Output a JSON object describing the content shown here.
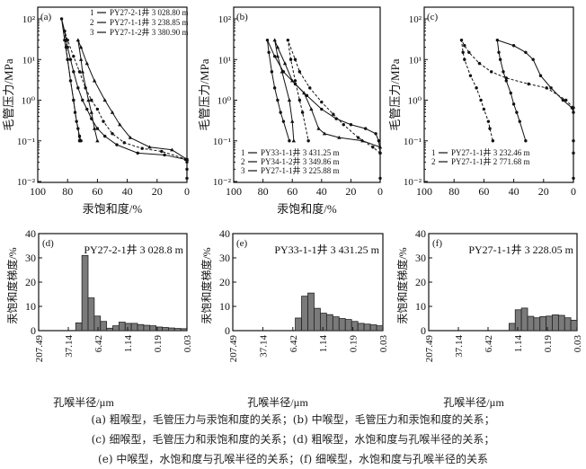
{
  "chart_data": [
    {
      "panel": "(a)",
      "type": "line",
      "ylog": true,
      "ylabel": "毛管压力/MPa",
      "xlabel": "汞饱和度/%",
      "xlim": [
        100,
        0
      ],
      "ylim": [
        0.01,
        100
      ],
      "xticks": [
        "100",
        "80",
        "60",
        "40",
        "20",
        "0"
      ],
      "yticks": [
        "10²",
        "10¹",
        "10⁰",
        "10⁻¹",
        "10⁻²"
      ],
      "legend_position": "top-right",
      "series": [
        {
          "name": "PY27-2-1井 3 028.80 m",
          "label": "1",
          "dash": false,
          "marker": "circle",
          "points": [
            [
              0,
              0.012
            ],
            [
              0,
              0.02
            ],
            [
              0,
              0.03
            ],
            [
              1,
              0.035
            ],
            [
              15,
              0.045
            ],
            [
              33,
              0.05
            ],
            [
              47,
              0.08
            ],
            [
              55,
              0.13
            ],
            [
              60,
              0.2
            ],
            [
              64,
              0.35
            ],
            [
              67,
              0.6
            ],
            [
              70,
              1
            ],
            [
              73,
              2
            ],
            [
              76,
              5
            ],
            [
              78,
              10
            ],
            [
              80,
              20
            ],
            [
              82,
              50
            ],
            [
              84,
              100
            ],
            [
              82,
              30
            ],
            [
              80,
              10
            ],
            [
              78,
              3
            ],
            [
              76,
              1
            ],
            [
              74,
              0.3
            ],
            [
              72,
              0.13
            ],
            [
              71,
              0.1
            ]
          ]
        },
        {
          "name": "PY27-1-1井 3 238.85 m",
          "label": "2",
          "dash": true,
          "marker": "circle",
          "points": [
            [
              0,
              0.035
            ],
            [
              17,
              0.055
            ],
            [
              30,
              0.065
            ],
            [
              42,
              0.09
            ],
            [
              50,
              0.15
            ],
            [
              56,
              0.3
            ],
            [
              60,
              0.6
            ],
            [
              64,
              1
            ],
            [
              68,
              2
            ],
            [
              72,
              5
            ],
            [
              76,
              12
            ],
            [
              80,
              30
            ],
            [
              82,
              50
            ],
            [
              81,
              20
            ],
            [
              80,
              10
            ],
            [
              78,
              3
            ],
            [
              76,
              1
            ],
            [
              75,
              0.5
            ],
            [
              73,
              0.2
            ],
            [
              72,
              0.1
            ]
          ]
        },
        {
          "name": "PY27-1-2井 3 380.90 m",
          "label": "3",
          "dash": false,
          "marker": "triangle",
          "points": [
            [
              0,
              0.035
            ],
            [
              10,
              0.06
            ],
            [
              25,
              0.07
            ],
            [
              38,
              0.12
            ],
            [
              45,
              0.25
            ],
            [
              50,
              0.5
            ],
            [
              55,
              1
            ],
            [
              62,
              3
            ],
            [
              67,
              8
            ],
            [
              71,
              20
            ],
            [
              73,
              30
            ],
            [
              71,
              10
            ],
            [
              70,
              5
            ],
            [
              66,
              1
            ],
            [
              64,
              0.5
            ],
            [
              62,
              0.2
            ],
            [
              60,
              0.1
            ]
          ]
        }
      ]
    },
    {
      "panel": "(b)",
      "type": "line",
      "ylog": true,
      "ylabel": "毛管压力/MPa",
      "xlabel": "汞饱和度/%",
      "xlim": [
        100,
        0
      ],
      "ylim": [
        0.01,
        100
      ],
      "xticks": [
        "100",
        "80",
        "60",
        "40",
        "20",
        "0"
      ],
      "yticks": [
        "10²",
        "10¹",
        "10⁰",
        "10⁻¹",
        "10⁻²"
      ],
      "legend_position": "bottom-left",
      "series": [
        {
          "name": "PY33-1-1井 3 431.25 m",
          "label": "1",
          "dash": false,
          "marker": "circle",
          "points": [
            [
              0,
              0.012
            ],
            [
              0,
              0.05
            ],
            [
              1,
              0.1
            ],
            [
              3,
              0.15
            ],
            [
              10,
              0.2
            ],
            [
              20,
              0.25
            ],
            [
              30,
              0.35
            ],
            [
              40,
              0.6
            ],
            [
              50,
              1.3
            ],
            [
              58,
              2.5
            ],
            [
              66,
              5
            ],
            [
              72,
              12
            ],
            [
              77,
              30
            ],
            [
              76,
              15
            ],
            [
              74,
              5
            ],
            [
              72,
              2
            ],
            [
              70,
              1
            ],
            [
              68,
              0.5
            ],
            [
              66,
              0.3
            ],
            [
              62,
              0.1
            ]
          ]
        },
        {
          "name": "PY34-1-2井 3 349.86 m",
          "label": "2",
          "dash": true,
          "marker": "circle",
          "points": [
            [
              0,
              0.05
            ],
            [
              5,
              0.07
            ],
            [
              15,
              0.12
            ],
            [
              25,
              0.25
            ],
            [
              32,
              0.45
            ],
            [
              40,
              0.9
            ],
            [
              48,
              2
            ],
            [
              55,
              5
            ],
            [
              58,
              10
            ],
            [
              63,
              30
            ],
            [
              61,
              10
            ],
            [
              58,
              3
            ],
            [
              55,
              1
            ],
            [
              53,
              0.5
            ],
            [
              49,
              0.1
            ]
          ]
        },
        {
          "name": "PY27-1-1井 3 225.88 m",
          "label": "3",
          "dash": false,
          "marker": "triangle",
          "points": [
            [
              0,
              0.07
            ],
            [
              12,
              0.1
            ],
            [
              28,
              0.12
            ],
            [
              38,
              0.15
            ],
            [
              42,
              0.2
            ],
            [
              47,
              0.6
            ],
            [
              52,
              1.5
            ],
            [
              60,
              3
            ],
            [
              65,
              8
            ],
            [
              70,
              20
            ],
            [
              72,
              30
            ],
            [
              70,
              12
            ],
            [
              67,
              5
            ],
            [
              62,
              1
            ],
            [
              60,
              0.3
            ],
            [
              59,
              0.1
            ]
          ]
        }
      ]
    },
    {
      "panel": "(c)",
      "type": "line",
      "ylog": true,
      "ylabel": "毛管压力/MPa",
      "xlabel": "",
      "xlim": [
        100,
        0
      ],
      "ylim": [
        0.01,
        100
      ],
      "xticks": [
        "100",
        "80",
        "60",
        "40",
        "20",
        "0"
      ],
      "yticks": [
        "10²",
        "10¹",
        "10⁰",
        "10⁻¹",
        "10⁻²"
      ],
      "legend_position": "bottom-left",
      "series": [
        {
          "name": "PY27-1-1井 3 232.46 m",
          "label": "1",
          "dash": false,
          "marker": "circle",
          "points": [
            [
              0,
              0.012
            ],
            [
              0,
              0.05
            ],
            [
              0,
              0.1
            ],
            [
              0,
              0.5
            ],
            [
              1,
              0.65
            ],
            [
              7,
              1
            ],
            [
              15,
              2
            ],
            [
              22,
              4
            ],
            [
              27,
              10
            ],
            [
              32,
              15
            ],
            [
              40,
              22
            ],
            [
              51,
              30
            ],
            [
              50,
              15
            ],
            [
              49,
              10
            ],
            [
              47,
              5
            ],
            [
              45,
              3
            ],
            [
              42,
              1.5
            ],
            [
              40,
              0.8
            ],
            [
              38,
              0.5
            ],
            [
              36,
              0.3
            ],
            [
              32,
              0.1
            ]
          ]
        },
        {
          "name": "PY27-1-1井 2 771.68 m",
          "label": "2",
          "dash": true,
          "marker": "circle",
          "points": [
            [
              0,
              0.65
            ],
            [
              5,
              1
            ],
            [
              18,
              2
            ],
            [
              30,
              2.5
            ],
            [
              45,
              3.5
            ],
            [
              55,
              5
            ],
            [
              63,
              8
            ],
            [
              70,
              15
            ],
            [
              73,
              22
            ],
            [
              75,
              30
            ],
            [
              74,
              15
            ],
            [
              73,
              10
            ],
            [
              69,
              4
            ],
            [
              65,
              2
            ],
            [
              62,
              1
            ],
            [
              60,
              0.6
            ],
            [
              57,
              0.3
            ],
            [
              56,
              0.2
            ],
            [
              54,
              0.1
            ]
          ]
        }
      ]
    },
    {
      "panel": "(d)",
      "type": "bar",
      "title": "PY27-2-1井 3 028.8 m",
      "ylabel": "汞饱和度梯度/%",
      "xlabel": "孔喉半径/µm",
      "ylim": [
        0,
        40
      ],
      "yticks": [
        "0",
        "10",
        "20",
        "30",
        "40"
      ],
      "xticks": [
        "207.49",
        "37.14",
        "6.42",
        "1.14",
        "0.19",
        "0.03"
      ],
      "values": [
        0,
        0,
        0,
        0,
        0,
        0,
        3.2,
        31,
        13.5,
        6,
        3.8,
        1,
        2,
        3.5,
        3,
        3,
        2.5,
        2.2,
        2,
        1.5,
        1.3,
        1.1,
        0.9,
        0.8
      ]
    },
    {
      "panel": "(e)",
      "type": "bar",
      "title": "PY33-1-1井 3 431.25 m",
      "ylabel": "汞饱和度梯度/%",
      "xlabel": "孔喉半径/µm",
      "ylim": [
        0,
        40
      ],
      "yticks": [
        "0",
        "10",
        "20",
        "30",
        "40"
      ],
      "xticks": [
        "207.49",
        "37.14",
        "6.42",
        "1.14",
        "0.19",
        "0.03"
      ],
      "values": [
        0,
        0,
        0,
        0,
        0,
        0,
        0,
        0,
        0,
        0,
        5.2,
        14.2,
        15.5,
        9.2,
        7.2,
        6.6,
        5.7,
        5,
        4.6,
        3.8,
        3,
        2.7,
        2.4,
        2
      ]
    },
    {
      "panel": "(f)",
      "type": "bar",
      "title": "PY27-1-1井 3 228.05 m",
      "ylabel": "汞饱和度梯度/%",
      "xlabel": "孔喉半径/µm",
      "ylim": [
        0,
        40
      ],
      "yticks": [
        "0",
        "10",
        "20",
        "30",
        "40"
      ],
      "xticks": [
        "207.49",
        "37.14",
        "6.42",
        "1.14",
        "0.19",
        "0.03"
      ],
      "values": [
        0,
        0,
        0,
        0,
        0,
        0,
        0,
        0,
        0,
        0,
        0,
        0,
        0,
        3,
        8.6,
        9.3,
        5.9,
        5.3,
        5.8,
        6,
        6.5,
        6.3,
        5.3,
        4.3
      ]
    }
  ],
  "caption": [
    "(a) 粗喉型，毛管压力与汞饱和度的关系；(b) 中喉型，毛管压力和汞饱和度的关系；",
    "(c) 细喉型，毛管压力和汞饱和度的关系；(d) 粗喉型，水饱和度与孔喉半径的关系；",
    "(e) 中喉型，水饱和度与孔喉半径的关系；(f) 细喉型，水饱和度与孔喉半径的关系"
  ],
  "colors": {
    "axis": "#111111",
    "bar_fill": "#7a7a7a",
    "bar_stroke": "#222222"
  }
}
